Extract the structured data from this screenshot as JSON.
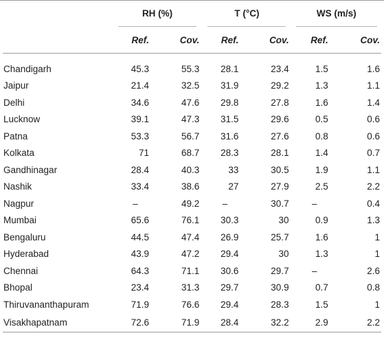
{
  "table": {
    "groups": [
      {
        "label": "RH (%)"
      },
      {
        "label": "T (°C)"
      },
      {
        "label": "WS (m/s)"
      }
    ],
    "subheaders": [
      "Ref.",
      "Cov.",
      "Ref.",
      "Cov.",
      "Ref.",
      "Cov."
    ],
    "rows": [
      {
        "location": "Chandigarh",
        "values": [
          "45.3",
          "55.3",
          "28.1",
          "23.4",
          "1.5",
          "1.6"
        ]
      },
      {
        "location": "Jaipur",
        "values": [
          "21.4",
          "32.5",
          "31.9",
          "29.2",
          "1.3",
          "1.1"
        ]
      },
      {
        "location": "Delhi",
        "values": [
          "34.6",
          "47.6",
          "29.8",
          "27.8",
          "1.6",
          "1.4"
        ]
      },
      {
        "location": "Lucknow",
        "values": [
          "39.1",
          "47.3",
          "31.5",
          "29.6",
          "0.5",
          "0.6"
        ]
      },
      {
        "location": "Patna",
        "values": [
          "53.3",
          "56.7",
          "31.6",
          "27.6",
          "0.8",
          "0.6"
        ]
      },
      {
        "location": "Kolkata",
        "values": [
          "71",
          "68.7",
          "28.3",
          "28.1",
          "1.4",
          "0.7"
        ]
      },
      {
        "location": "Gandhinagar",
        "values": [
          "28.4",
          "40.3",
          "33",
          "30.5",
          "1.9",
          "1.1"
        ]
      },
      {
        "location": "Nashik",
        "values": [
          "33.4",
          "38.6",
          "27",
          "27.9",
          "2.5",
          "2.2"
        ]
      },
      {
        "location": "Nagpur",
        "values": [
          "–",
          "49.2",
          "–",
          "30.7",
          "–",
          "0.4"
        ]
      },
      {
        "location": "Mumbai",
        "values": [
          "65.6",
          "76.1",
          "30.3",
          "30",
          "0.9",
          "1.3"
        ]
      },
      {
        "location": "Bengaluru",
        "values": [
          "44.5",
          "47.4",
          "26.9",
          "25.7",
          "1.6",
          "1"
        ]
      },
      {
        "location": "Hyderabad",
        "values": [
          "43.9",
          "47.2",
          "29.4",
          "30",
          "1.3",
          "1"
        ]
      },
      {
        "location": "Chennai",
        "values": [
          "64.3",
          "71.1",
          "30.6",
          "29.7",
          "–",
          "2.6"
        ]
      },
      {
        "location": "Bhopal",
        "values": [
          "23.4",
          "31.3",
          "29.7",
          "30.9",
          "0.7",
          "0.8"
        ]
      },
      {
        "location": "Thiruvananthapuram",
        "values": [
          "71.9",
          "76.6",
          "29.4",
          "28.3",
          "1.5",
          "1"
        ]
      },
      {
        "location": "Visakhapatnam",
        "values": [
          "72.6",
          "71.9",
          "28.4",
          "32.2",
          "2.9",
          "2.2"
        ]
      }
    ]
  }
}
